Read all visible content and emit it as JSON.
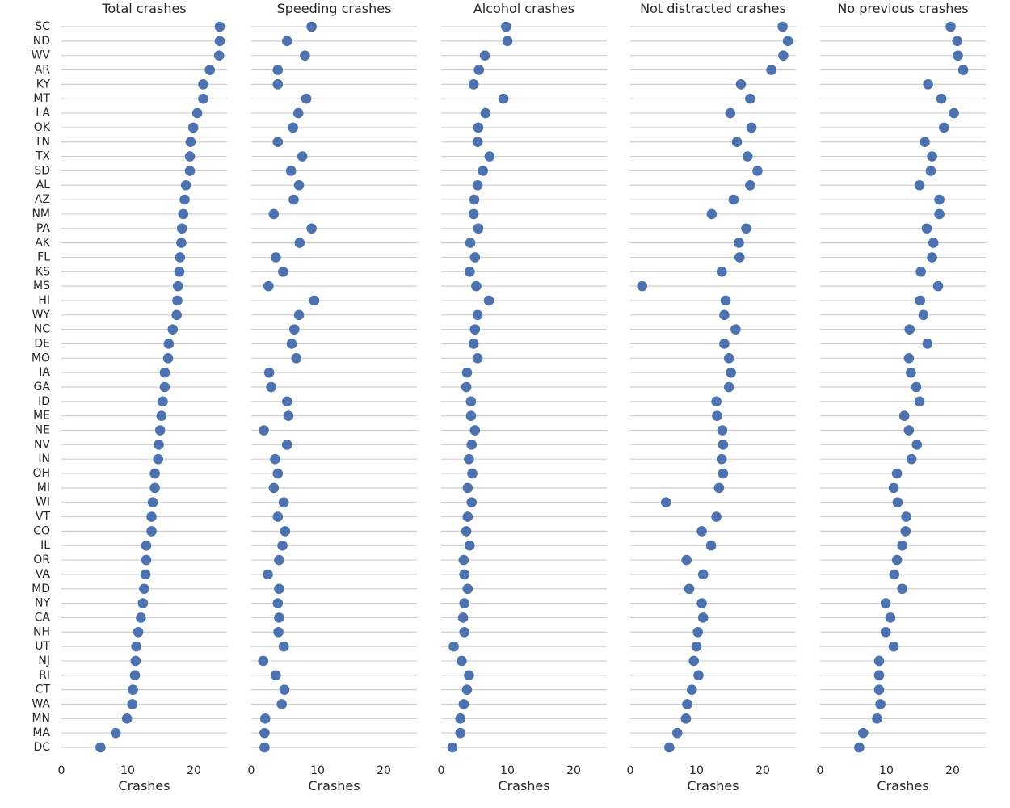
{
  "chart_data": {
    "type": "scatter",
    "subtype": "strip-dot",
    "categories": [
      "SC",
      "ND",
      "WV",
      "AR",
      "KY",
      "MT",
      "LA",
      "OK",
      "TN",
      "TX",
      "SD",
      "AL",
      "AZ",
      "NM",
      "PA",
      "AK",
      "FL",
      "KS",
      "MS",
      "HI",
      "WY",
      "NC",
      "DE",
      "MO",
      "IA",
      "GA",
      "ID",
      "ME",
      "NE",
      "NV",
      "IN",
      "OH",
      "MI",
      "WI",
      "VT",
      "CO",
      "IL",
      "OR",
      "VA",
      "MD",
      "NY",
      "CA",
      "NH",
      "UT",
      "NJ",
      "RI",
      "CT",
      "WA",
      "MN",
      "MA",
      "DC"
    ],
    "xlim": [
      0,
      25
    ],
    "xticks": [
      0,
      10,
      20
    ],
    "xlabel": "Crashes",
    "grid": "horizontal",
    "panels": [
      {
        "title": "Total crashes",
        "values": [
          23.9,
          23.9,
          23.8,
          22.4,
          21.4,
          21.4,
          20.5,
          19.9,
          19.5,
          19.4,
          19.4,
          18.8,
          18.6,
          18.4,
          18.2,
          18.1,
          17.9,
          17.8,
          17.6,
          17.5,
          17.4,
          16.8,
          16.2,
          16.1,
          15.6,
          15.6,
          15.3,
          15.1,
          14.9,
          14.7,
          14.6,
          14.1,
          14.1,
          13.8,
          13.6,
          13.6,
          12.8,
          12.8,
          12.7,
          12.5,
          12.3,
          12.0,
          11.6,
          11.3,
          11.2,
          11.1,
          10.8,
          10.7,
          9.9,
          8.2,
          5.9
        ]
      },
      {
        "title": "Speeding crashes",
        "values": [
          9.1,
          5.4,
          8.1,
          4.0,
          4.0,
          8.3,
          7.1,
          6.3,
          4.0,
          7.7,
          6.0,
          7.2,
          6.4,
          3.4,
          9.1,
          7.3,
          3.7,
          4.8,
          2.6,
          9.5,
          7.2,
          6.5,
          6.1,
          6.8,
          2.7,
          3.0,
          5.4,
          5.6,
          1.9,
          5.4,
          3.6,
          4.0,
          3.4,
          4.9,
          4.0,
          5.1,
          4.7,
          4.2,
          2.5,
          4.2,
          4.0,
          4.2,
          4.1,
          4.9,
          1.8,
          3.7,
          5.0,
          4.6,
          2.1,
          2.0,
          2.0
        ]
      },
      {
        "title": "Alcohol crashes",
        "values": [
          9.8,
          10.0,
          6.6,
          5.7,
          4.9,
          9.4,
          6.7,
          5.6,
          5.5,
          7.3,
          6.3,
          5.5,
          5.0,
          4.9,
          5.6,
          4.4,
          5.1,
          4.3,
          5.3,
          7.2,
          5.5,
          5.1,
          4.9,
          5.5,
          3.9,
          3.8,
          4.5,
          4.5,
          5.1,
          4.6,
          4.2,
          4.7,
          4.0,
          4.6,
          4.0,
          3.8,
          4.3,
          3.4,
          3.5,
          4.0,
          3.5,
          3.3,
          3.5,
          1.9,
          3.1,
          4.2,
          3.9,
          3.4,
          2.9,
          2.9,
          1.7
        ]
      },
      {
        "title": "Not distracted crashes",
        "values": [
          23.0,
          23.8,
          23.1,
          21.3,
          16.7,
          18.1,
          15.1,
          18.3,
          16.1,
          17.7,
          19.2,
          18.1,
          15.6,
          12.3,
          17.5,
          16.4,
          16.5,
          13.8,
          1.8,
          14.4,
          14.2,
          15.9,
          14.2,
          14.9,
          15.2,
          14.9,
          13.0,
          13.1,
          13.9,
          14.0,
          13.8,
          14.0,
          13.4,
          5.4,
          13.0,
          10.8,
          12.2,
          8.5,
          11.0,
          8.9,
          10.8,
          11.0,
          10.2,
          10.0,
          9.6,
          10.3,
          9.3,
          8.6,
          8.4,
          7.1,
          5.9
        ]
      },
      {
        "title": "No previous crashes",
        "values": [
          19.7,
          20.7,
          20.8,
          21.6,
          16.3,
          18.3,
          20.2,
          18.7,
          15.8,
          16.9,
          16.7,
          15.0,
          18.0,
          18.0,
          16.1,
          17.1,
          16.9,
          15.2,
          17.8,
          15.1,
          15.6,
          13.5,
          16.2,
          13.4,
          13.7,
          14.5,
          15.0,
          12.7,
          13.4,
          14.6,
          13.8,
          11.6,
          11.1,
          11.7,
          13.0,
          12.9,
          12.4,
          11.6,
          11.2,
          12.4,
          9.9,
          10.6,
          9.9,
          11.1,
          8.9,
          8.9,
          8.9,
          9.1,
          8.6,
          6.5,
          5.9
        ]
      }
    ]
  }
}
